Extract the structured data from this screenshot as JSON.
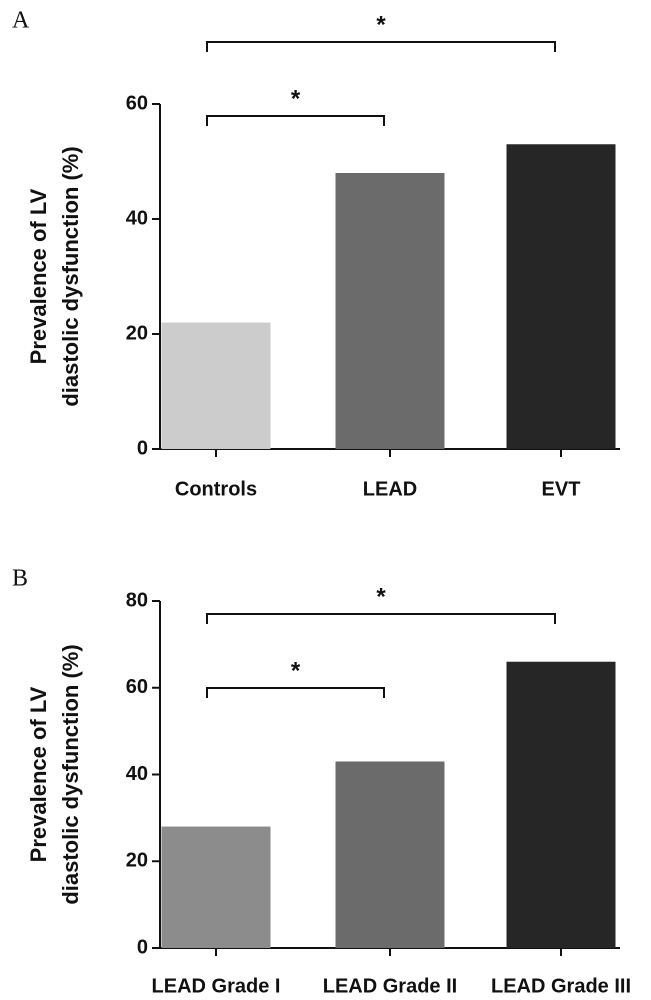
{
  "chart_data": [
    {
      "type": "bar",
      "panel": "A",
      "ylabel": [
        "Prevalence of LV",
        "diastolic dysfunction (%)"
      ],
      "categories": [
        "Controls",
        "LEAD",
        "EVT"
      ],
      "values": [
        22,
        48,
        53
      ],
      "colors": [
        "#cccccc",
        "#6b6b6b",
        "#262626"
      ],
      "ylim": [
        0,
        60
      ],
      "yticks": [
        0,
        20,
        40,
        60
      ],
      "annotations": [
        {
          "text": "*"
        },
        {
          "text": "*"
        }
      ]
    },
    {
      "type": "bar",
      "panel": "B",
      "ylabel": [
        "Prevalence of LV",
        "diastolic dysfunction (%)"
      ],
      "categories": [
        "LEAD Grade I",
        "LEAD Grade II",
        "LEAD Grade III"
      ],
      "values": [
        28,
        43,
        66
      ],
      "colors": [
        "#8c8c8c",
        "#6b6b6b",
        "#262626"
      ],
      "ylim": [
        0,
        80
      ],
      "yticks": [
        0,
        20,
        40,
        60,
        80
      ],
      "annotations": [
        {
          "text": "*"
        },
        {
          "text": "*"
        }
      ]
    }
  ]
}
